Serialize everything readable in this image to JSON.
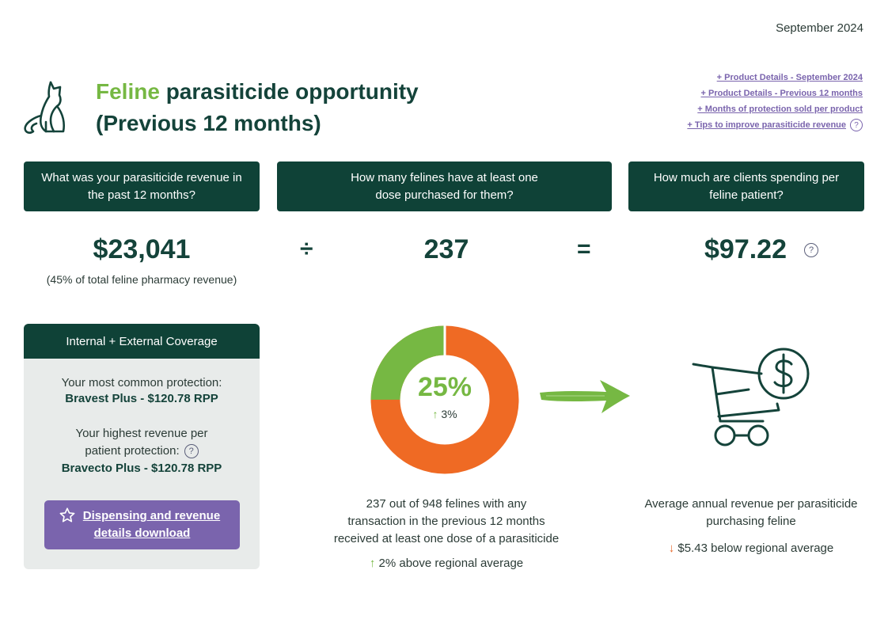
{
  "header": {
    "date": "September 2024",
    "title_accent": "Feline",
    "title_rest": " parasiticide opportunity",
    "title_line2": "(Previous 12 months)"
  },
  "links": [
    "+ Product Details - September 2024",
    "+ Product Details - Previous 12 months",
    "+ Months of protection sold per product",
    "+ Tips to improve parasiticide revenue"
  ],
  "help_glyph": "?",
  "questions": {
    "revenue": "What was your parasiticide revenue in the past 12 months?",
    "felines": "How many felines have at least one dose purchased for them?",
    "spending": "How much are clients spending per feline patient?"
  },
  "metrics": {
    "revenue": "$23,041",
    "revenue_note": "(45% of total feline pharmacy revenue)",
    "divide_op": "÷",
    "felines": "237",
    "equals_op": "=",
    "spend_per_patient": "$97.22"
  },
  "coverage": {
    "header": "Internal + External Coverage",
    "common_label": "Your most common protection:",
    "common_value": "Bravest Plus - $120.78 RPP",
    "highest_label_1": "Your highest revenue per",
    "highest_label_2": "patient protection:",
    "highest_value": "Bravecto Plus - $120.78 RPP",
    "download_line1": "Dispensing and revenue",
    "download_line2": "details download"
  },
  "donut": {
    "percent": 25,
    "percent_label": "25%",
    "change_arrow": "↑",
    "change": "3%",
    "colors": {
      "filled": "#76b843",
      "remainder": "#ef6a24"
    }
  },
  "donut_desc": {
    "line1": "237 out of 948 felines with any",
    "line2": "transaction in the previous 12 months",
    "line3": "received at least one dose of a parasiticide",
    "trend_arrow": "↑",
    "trend_text": "2% above regional average"
  },
  "cart_desc": {
    "line1": "Average annual revenue per parasiticide",
    "line2": "purchasing feline",
    "trend_arrow": "↓",
    "trend_text": "$5.43 below regional average"
  },
  "icons": {
    "cat": "cat-icon",
    "arrow": "arrow-right-icon",
    "cart": "shopping-cart-dollar-icon",
    "star": "star-icon",
    "help": "question-icon"
  },
  "colors": {
    "dark_green": "#0f4237",
    "accent_green": "#76b843",
    "orange": "#ef6a24",
    "purple": "#7a64ad"
  }
}
